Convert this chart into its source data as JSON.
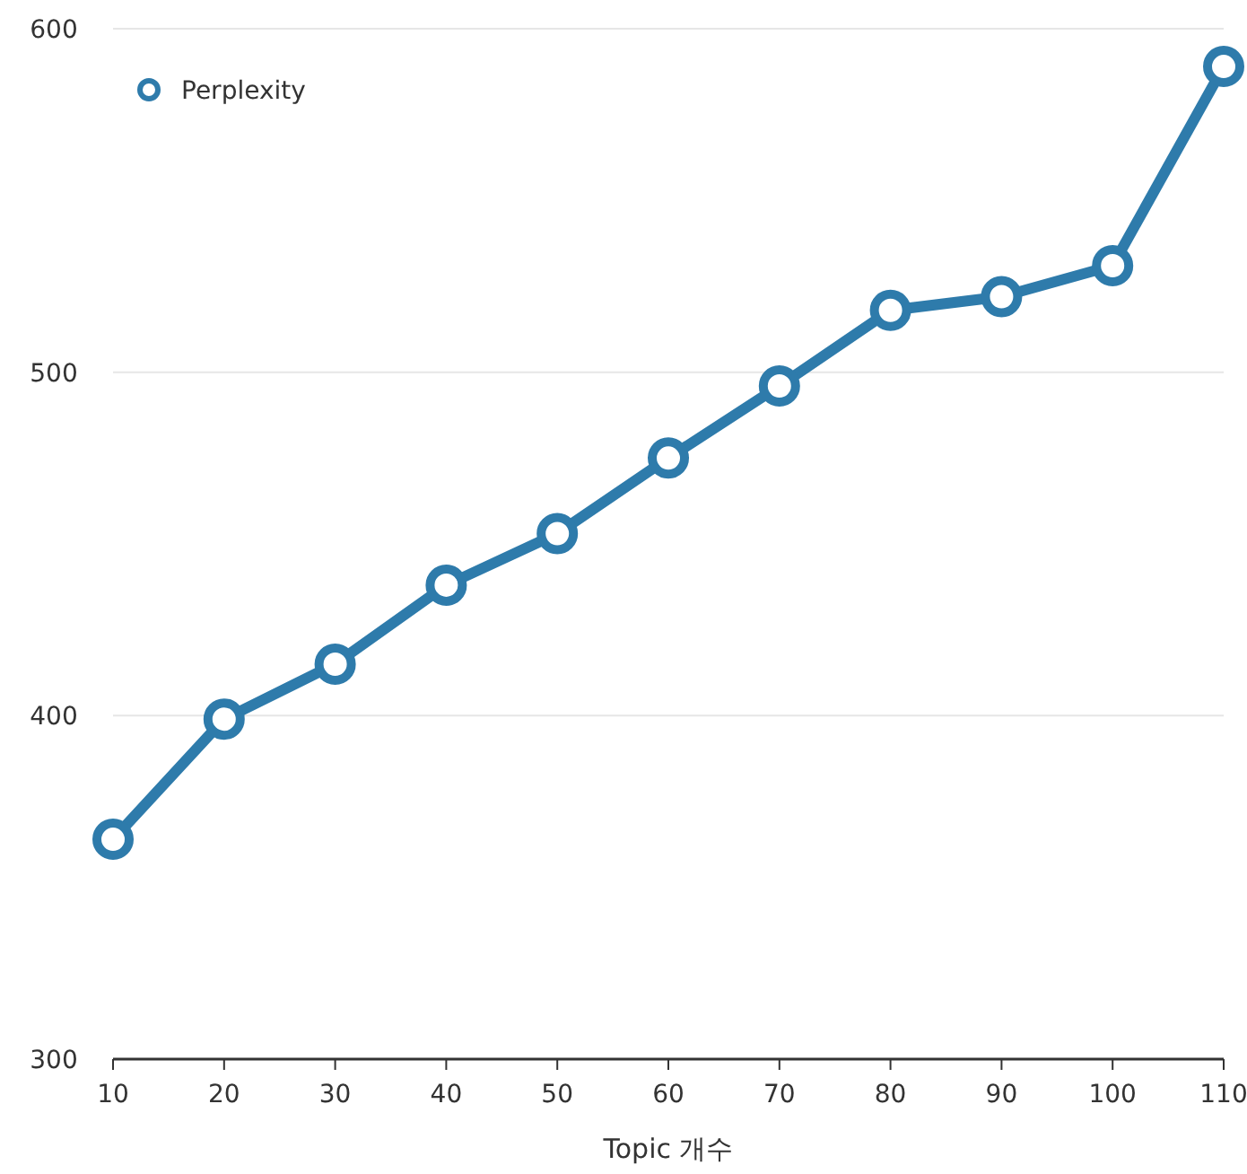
{
  "chart_data": {
    "type": "line",
    "xlabel": "Topic 개수",
    "x": [
      10,
      20,
      30,
      40,
      50,
      60,
      70,
      80,
      90,
      100,
      110
    ],
    "series": [
      {
        "name": "Perplexity",
        "color": "#2e7bab",
        "values": [
          364,
          399,
          415,
          438,
          453,
          475,
          496,
          518,
          522,
          531,
          589
        ]
      }
    ],
    "xlim": [
      10,
      110
    ],
    "xticks": [
      10,
      20,
      30,
      40,
      50,
      60,
      70,
      80,
      90,
      100,
      110
    ],
    "ylim": [
      300,
      600
    ],
    "yticks": [
      300,
      400,
      500,
      600
    ],
    "grid": "y",
    "legend": "top left",
    "marker": "circle",
    "line_style": "solid"
  }
}
